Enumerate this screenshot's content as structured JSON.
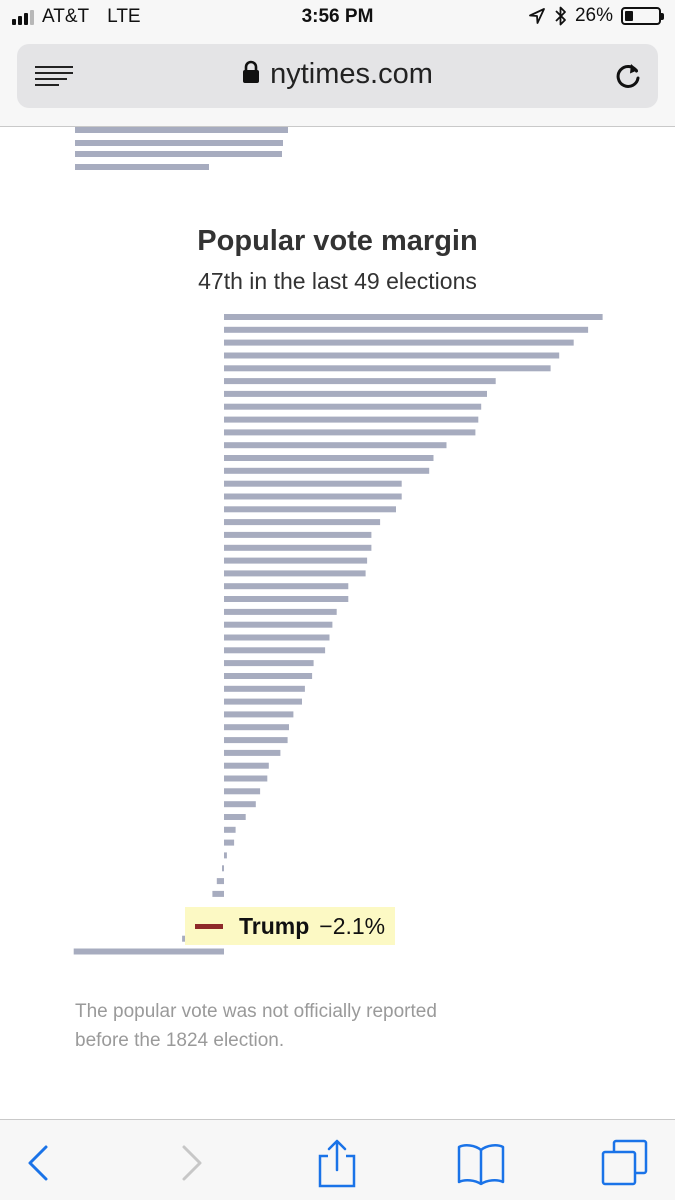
{
  "status": {
    "carrier": "AT&T",
    "network": "LTE",
    "time": "3:56 PM",
    "battery": "26%",
    "battery_level": 0.26
  },
  "browser": {
    "url": "nytimes.com",
    "icons": {
      "reader": "reader-view-icon",
      "lock": "lock-icon",
      "reload": "reload-icon",
      "back": "back-chevron-icon",
      "forward": "forward-chevron-icon",
      "share": "share-icon",
      "bookmarks": "bookmarks-icon",
      "tabs": "tabs-icon"
    }
  },
  "colors": {
    "bar": "#a7acbf",
    "trump_swatch": "#8e2a2a",
    "callout_bg": "#fcf9c4",
    "ios_blue": "#1a73e8"
  },
  "chart_data": {
    "type": "bar",
    "title": "Popular vote margin",
    "subtitle": "47th in the last 49 elections",
    "orientation": "horizontal",
    "baseline": 0,
    "values": [
      26.2,
      25.2,
      24.2,
      23.2,
      22.6,
      18.8,
      18.2,
      17.8,
      17.6,
      17.4,
      15.4,
      14.5,
      14.2,
      12.3,
      12.3,
      11.9,
      10.8,
      10.2,
      10.2,
      9.9,
      9.8,
      8.6,
      8.6,
      7.8,
      7.5,
      7.3,
      7.0,
      6.2,
      6.1,
      5.6,
      5.4,
      4.8,
      4.5,
      4.4,
      3.9,
      3.1,
      3.0,
      2.5,
      2.2,
      1.5,
      0.8,
      0.7,
      0.2,
      -0.1,
      -0.5,
      -0.8,
      -2.9,
      -10.4
    ],
    "highlight": {
      "label": "Trump",
      "value": "−2.1%",
      "rank": 47,
      "numeric_value": -2.1
    },
    "footnote": "The popular vote was not officially reported before the 1824 election."
  }
}
